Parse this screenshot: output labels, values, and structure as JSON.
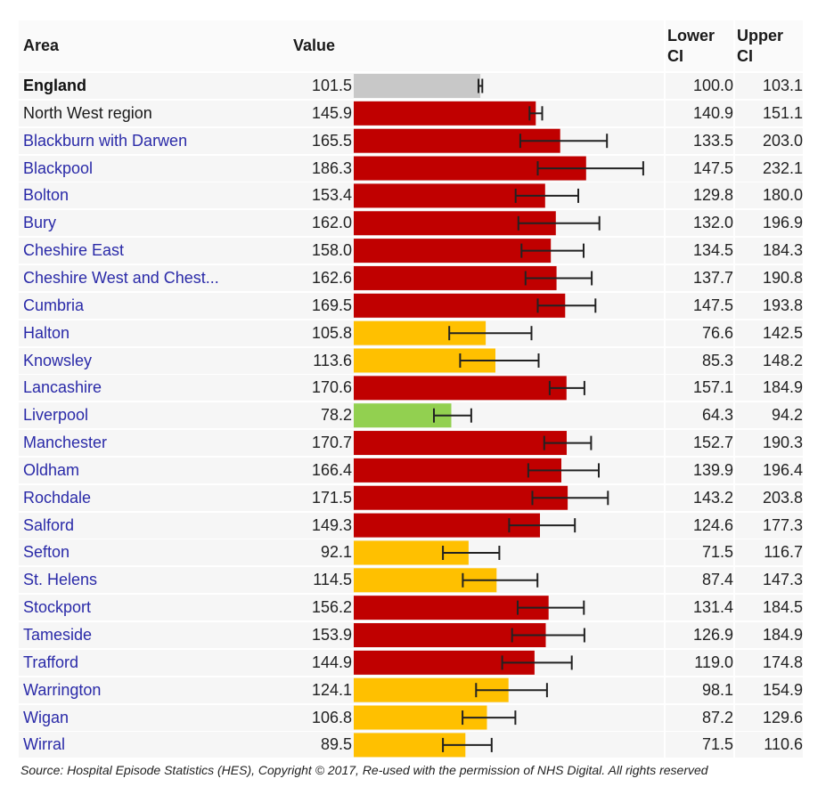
{
  "table": {
    "headers": {
      "area": "Area",
      "value": "Value",
      "lower_ci": "Lower CI",
      "upper_ci": "Upper CI"
    },
    "rows": [
      {
        "area": "England",
        "value": "101.5",
        "lower": "100.0",
        "upper": "103.1",
        "kind": "benchmark"
      },
      {
        "area": "North West region",
        "value": "145.9",
        "lower": "140.9",
        "upper": "151.1",
        "kind": "region"
      },
      {
        "area": "Blackburn with Darwen",
        "value": "165.5",
        "lower": "133.5",
        "upper": "203.0",
        "kind": "worse"
      },
      {
        "area": "Blackpool",
        "value": "186.3",
        "lower": "147.5",
        "upper": "232.1",
        "kind": "worse"
      },
      {
        "area": "Bolton",
        "value": "153.4",
        "lower": "129.8",
        "upper": "180.0",
        "kind": "worse"
      },
      {
        "area": "Bury",
        "value": "162.0",
        "lower": "132.0",
        "upper": "196.9",
        "kind": "worse"
      },
      {
        "area": "Cheshire East",
        "value": "158.0",
        "lower": "134.5",
        "upper": "184.3",
        "kind": "worse"
      },
      {
        "area": "Cheshire West and Chest...",
        "value": "162.6",
        "lower": "137.7",
        "upper": "190.8",
        "kind": "worse"
      },
      {
        "area": "Cumbria",
        "value": "169.5",
        "lower": "147.5",
        "upper": "193.8",
        "kind": "worse"
      },
      {
        "area": "Halton",
        "value": "105.8",
        "lower": "76.6",
        "upper": "142.5",
        "kind": "similar"
      },
      {
        "area": "Knowsley",
        "value": "113.6",
        "lower": "85.3",
        "upper": "148.2",
        "kind": "similar"
      },
      {
        "area": "Lancashire",
        "value": "170.6",
        "lower": "157.1",
        "upper": "184.9",
        "kind": "worse"
      },
      {
        "area": "Liverpool",
        "value": "78.2",
        "lower": "64.3",
        "upper": "94.2",
        "kind": "better"
      },
      {
        "area": "Manchester",
        "value": "170.7",
        "lower": "152.7",
        "upper": "190.3",
        "kind": "worse"
      },
      {
        "area": "Oldham",
        "value": "166.4",
        "lower": "139.9",
        "upper": "196.4",
        "kind": "worse"
      },
      {
        "area": "Rochdale",
        "value": "171.5",
        "lower": "143.2",
        "upper": "203.8",
        "kind": "worse"
      },
      {
        "area": "Salford",
        "value": "149.3",
        "lower": "124.6",
        "upper": "177.3",
        "kind": "worse"
      },
      {
        "area": "Sefton",
        "value": "92.1",
        "lower": "71.5",
        "upper": "116.7",
        "kind": "similar"
      },
      {
        "area": "St. Helens",
        "value": "114.5",
        "lower": "87.4",
        "upper": "147.3",
        "kind": "similar"
      },
      {
        "area": "Stockport",
        "value": "156.2",
        "lower": "131.4",
        "upper": "184.5",
        "kind": "worse"
      },
      {
        "area": "Tameside",
        "value": "153.9",
        "lower": "126.9",
        "upper": "184.9",
        "kind": "worse"
      },
      {
        "area": "Trafford",
        "value": "144.9",
        "lower": "119.0",
        "upper": "174.8",
        "kind": "worse"
      },
      {
        "area": "Warrington",
        "value": "124.1",
        "lower": "98.1",
        "upper": "154.9",
        "kind": "similar"
      },
      {
        "area": "Wigan",
        "value": "106.8",
        "lower": "87.2",
        "upper": "129.6",
        "kind": "similar"
      },
      {
        "area": "Wirral",
        "value": "89.5",
        "lower": "71.5",
        "upper": "110.6",
        "kind": "similar"
      }
    ]
  },
  "colors": {
    "benchmark": "#c8c8c8",
    "region": "#c00000",
    "worse": "#c00000",
    "similar": "#ffc000",
    "better": "#92d050",
    "error_bar": "#222222"
  },
  "chart_data": {
    "type": "bar",
    "orientation": "horizontal",
    "categories": [
      "England",
      "North West region",
      "Blackburn with Darwen",
      "Blackpool",
      "Bolton",
      "Bury",
      "Cheshire East",
      "Cheshire West and Chest...",
      "Cumbria",
      "Halton",
      "Knowsley",
      "Lancashire",
      "Liverpool",
      "Manchester",
      "Oldham",
      "Rochdale",
      "Salford",
      "Sefton",
      "St. Helens",
      "Stockport",
      "Tameside",
      "Trafford",
      "Warrington",
      "Wigan",
      "Wirral"
    ],
    "values": [
      101.5,
      145.9,
      165.5,
      186.3,
      153.4,
      162.0,
      158.0,
      162.6,
      169.5,
      105.8,
      113.6,
      170.6,
      78.2,
      170.7,
      166.4,
      171.5,
      149.3,
      92.1,
      114.5,
      156.2,
      153.9,
      144.9,
      124.1,
      106.8,
      89.5
    ],
    "lower_ci": [
      100.0,
      140.9,
      133.5,
      147.5,
      129.8,
      132.0,
      134.5,
      137.7,
      147.5,
      76.6,
      85.3,
      157.1,
      64.3,
      152.7,
      139.9,
      143.2,
      124.6,
      71.5,
      87.4,
      131.4,
      126.9,
      119.0,
      98.1,
      87.2,
      71.5
    ],
    "upper_ci": [
      103.1,
      151.1,
      203.0,
      232.1,
      180.0,
      196.9,
      184.3,
      190.8,
      193.8,
      142.5,
      148.2,
      184.9,
      94.2,
      190.3,
      196.4,
      203.8,
      177.3,
      116.7,
      147.3,
      184.5,
      184.9,
      174.8,
      154.9,
      129.6,
      110.6
    ],
    "xlim": [
      0,
      250
    ],
    "grid": false,
    "legend": "none",
    "xlabel": "",
    "ylabel": ""
  },
  "footer": {
    "source": "Source: Hospital Episode Statistics (HES), Copyright © 2017, Re-used with the permission of NHS Digital. All rights reserved"
  }
}
